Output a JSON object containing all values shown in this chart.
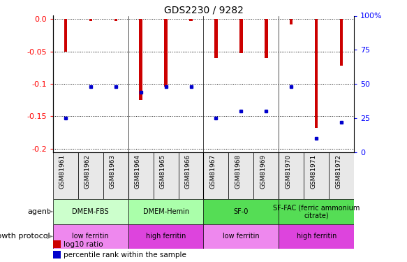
{
  "title": "GDS2230 / 9282",
  "samples": [
    "GSM81961",
    "GSM81962",
    "GSM81963",
    "GSM81964",
    "GSM81965",
    "GSM81966",
    "GSM81967",
    "GSM81968",
    "GSM81969",
    "GSM81970",
    "GSM81971",
    "GSM81972"
  ],
  "log10_ratio": [
    -0.05,
    -0.003,
    -0.003,
    -0.125,
    -0.104,
    -0.003,
    -0.06,
    -0.053,
    -0.06,
    -0.008,
    -0.168,
    -0.072
  ],
  "percentile_rank": [
    25,
    48,
    48,
    44,
    48,
    48,
    25,
    30,
    30,
    48,
    10,
    22
  ],
  "ylim_left": [
    -0.205,
    0.005
  ],
  "ylim_right": [
    0,
    100
  ],
  "yticks_left": [
    0.0,
    -0.05,
    -0.1,
    -0.15,
    -0.2
  ],
  "yticks_right": [
    0,
    25,
    50,
    75,
    100
  ],
  "bar_color": "#cc0000",
  "dot_color": "#0000cc",
  "bar_width": 0.12,
  "agent_groups": [
    {
      "label": "DMEM-FBS",
      "start": 0,
      "end": 3,
      "color": "#ccffcc"
    },
    {
      "label": "DMEM-Hemin",
      "start": 3,
      "end": 6,
      "color": "#aaffaa"
    },
    {
      "label": "SF-0",
      "start": 6,
      "end": 9,
      "color": "#55dd55"
    },
    {
      "label": "SF-FAC (ferric ammonium\ncitrate)",
      "start": 9,
      "end": 12,
      "color": "#55dd55"
    }
  ],
  "growth_groups": [
    {
      "label": "low ferritin",
      "start": 0,
      "end": 3,
      "color": "#ee88ee"
    },
    {
      "label": "high ferritin",
      "start": 3,
      "end": 6,
      "color": "#dd44dd"
    },
    {
      "label": "low ferritin",
      "start": 6,
      "end": 9,
      "color": "#ee88ee"
    },
    {
      "label": "high ferritin",
      "start": 9,
      "end": 12,
      "color": "#dd44dd"
    }
  ],
  "agent_label": "agent",
  "growth_label": "growth protocol",
  "legend_red": "log10 ratio",
  "legend_blue": "percentile rank within the sample"
}
